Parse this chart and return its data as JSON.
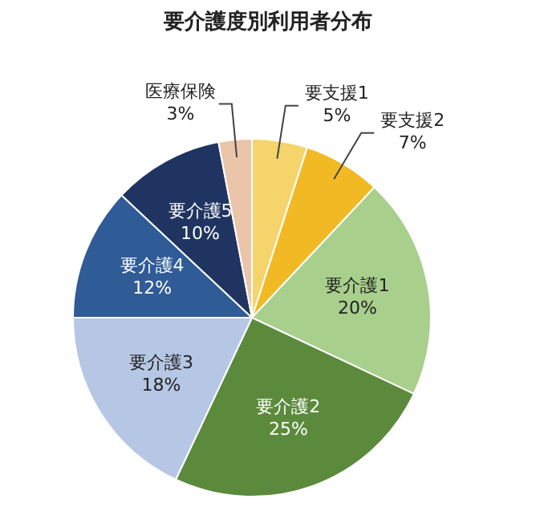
{
  "chart_data": {
    "type": "pie",
    "title": "要介護度別利用者分布",
    "categories": [
      "要支援1",
      "要支援2",
      "要介護1",
      "要介護2",
      "要介護3",
      "要介護4",
      "要介護5",
      "医療保険"
    ],
    "values": [
      5,
      7,
      20,
      25,
      18,
      12,
      10,
      3
    ],
    "value_labels": [
      "5%",
      "7%",
      "20%",
      "25%",
      "18%",
      "12%",
      "10%",
      "3%"
    ],
    "colors": [
      "#f6d46c",
      "#f1ba25",
      "#a8cf8c",
      "#5b8a3c",
      "#b6c7e5",
      "#2f5b97",
      "#1f3461",
      "#eac5aa"
    ],
    "legend": false
  }
}
